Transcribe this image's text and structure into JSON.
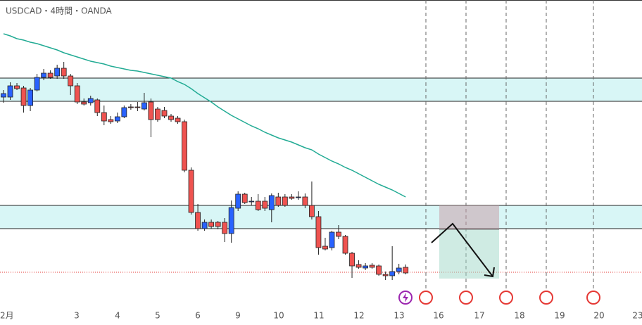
{
  "chart_data": {
    "type": "candlestick",
    "title": "USDCAD・4時間・OANDA",
    "ylim": [
      1.347,
      1.39
    ],
    "up_color": "#2962ff",
    "down_color": "#ef5350",
    "ma_color": "#22ab94",
    "open": [
      1.3762,
      1.3762,
      1.3778,
      1.3775,
      1.375,
      1.3772,
      1.379,
      1.3796,
      1.3792,
      1.3803,
      1.3792,
      1.3778,
      1.3755,
      1.3754,
      1.3758,
      1.374,
      1.373,
      1.3728,
      1.3734,
      1.3748,
      1.3748,
      1.3745,
      1.3755,
      1.3745,
      1.3743,
      1.3735,
      1.3732,
      1.3727,
      1.3658,
      1.3598,
      1.3575,
      1.3584,
      1.3584,
      1.3584,
      1.3568,
      1.3604,
      1.3624,
      1.3614,
      1.3614,
      1.3614,
      1.3602,
      1.362,
      1.362,
      1.362,
      1.362,
      1.362,
      1.3608,
      1.3592,
      1.355,
      1.3548,
      1.357,
      1.3564,
      1.354,
      1.3524,
      1.3519,
      1.3523,
      1.3522,
      1.351,
      1.3508,
      1.3514,
      1.352
    ],
    "high": [
      1.3772,
      1.3783,
      1.3782,
      1.3778,
      1.3775,
      1.3795,
      1.3802,
      1.38,
      1.3808,
      1.3812,
      1.3795,
      1.3782,
      1.376,
      1.3764,
      1.376,
      1.375,
      1.3735,
      1.374,
      1.375,
      1.3752,
      1.3755,
      1.3768,
      1.376,
      1.3748,
      1.3748,
      1.3738,
      1.3735,
      1.373,
      1.3662,
      1.361,
      1.3588,
      1.3588,
      1.3586,
      1.359,
      1.3615,
      1.3628,
      1.3626,
      1.362,
      1.3624,
      1.362,
      1.3625,
      1.3626,
      1.3624,
      1.3624,
      1.3628,
      1.3625,
      1.3642,
      1.36,
      1.3562,
      1.3572,
      1.358,
      1.3566,
      1.3542,
      1.353,
      1.3526,
      1.3526,
      1.3524,
      1.3514,
      1.355,
      1.3525,
      1.3524
    ],
    "low": [
      1.3754,
      1.3758,
      1.3772,
      1.374,
      1.3742,
      1.377,
      1.3786,
      1.3788,
      1.3788,
      1.3788,
      1.3765,
      1.3752,
      1.375,
      1.375,
      1.3735,
      1.3722,
      1.3724,
      1.3725,
      1.3732,
      1.3744,
      1.3742,
      1.3743,
      1.3705,
      1.3727,
      1.3732,
      1.3727,
      1.3724,
      1.3655,
      1.3595,
      1.3572,
      1.3572,
      1.3575,
      1.3574,
      1.3556,
      1.3555,
      1.36,
      1.361,
      1.3608,
      1.36,
      1.36,
      1.3584,
      1.3606,
      1.3606,
      1.3616,
      1.3616,
      1.3604,
      1.3588,
      1.3538,
      1.3544,
      1.3544,
      1.356,
      1.3538,
      1.3505,
      1.3518,
      1.3516,
      1.3518,
      1.3508,
      1.3502,
      1.3502,
      1.351,
      1.351
    ],
    "close": [
      1.3767,
      1.3778,
      1.3774,
      1.375,
      1.3772,
      1.379,
      1.3796,
      1.379,
      1.3803,
      1.3792,
      1.3778,
      1.3755,
      1.3752,
      1.376,
      1.374,
      1.3728,
      1.3727,
      1.3734,
      1.3747,
      1.3747,
      1.3747,
      1.3754,
      1.373,
      1.373,
      1.3735,
      1.373,
      1.3727,
      1.3658,
      1.3598,
      1.3575,
      1.3584,
      1.3578,
      1.3578,
      1.3568,
      1.3605,
      1.3624,
      1.3612,
      1.3614,
      1.3602,
      1.3604,
      1.3622,
      1.3608,
      1.3608,
      1.3618,
      1.362,
      1.3608,
      1.3592,
      1.3548,
      1.3546,
      1.357,
      1.3564,
      1.354,
      1.3522,
      1.352,
      1.3522,
      1.352,
      1.351,
      1.3508,
      1.3514,
      1.3519,
      1.3512
    ],
    "ma": [
      1.3852,
      1.3849,
      1.3845,
      1.3843,
      1.384,
      1.3838,
      1.3835,
      1.3832,
      1.3829,
      1.3825,
      1.3822,
      1.3819,
      1.3816,
      1.3813,
      1.3811,
      1.3809,
      1.3806,
      1.3804,
      1.3802,
      1.38,
      1.3799,
      1.3797,
      1.3795,
      1.3793,
      1.3791,
      1.3789,
      1.3784,
      1.378,
      1.3774,
      1.3767,
      1.3761,
      1.3755,
      1.3748,
      1.3742,
      1.3736,
      1.3731,
      1.3726,
      1.3721,
      1.3717,
      1.3712,
      1.3708,
      1.3704,
      1.3701,
      1.3698,
      1.3694,
      1.369,
      1.3687,
      1.3681,
      1.3676,
      1.3671,
      1.3667,
      1.3662,
      1.3658,
      1.3653,
      1.3648,
      1.3643,
      1.3638,
      1.3634,
      1.363,
      1.3625,
      1.362
    ],
    "zones": [
      {
        "high": 1.3789,
        "low": 1.3756
      },
      {
        "high": 1.3608,
        "low": 1.3575
      }
    ],
    "position": {
      "stop": 1.3608,
      "entry": 1.3574,
      "target": 1.3504
    },
    "current_price": 1.3513,
    "x_labels": [
      "2月",
      "3",
      "4",
      "5",
      "6",
      "9",
      "10",
      "11",
      "12",
      "13",
      "16",
      "17",
      "18",
      "19",
      "20",
      "23"
    ]
  }
}
